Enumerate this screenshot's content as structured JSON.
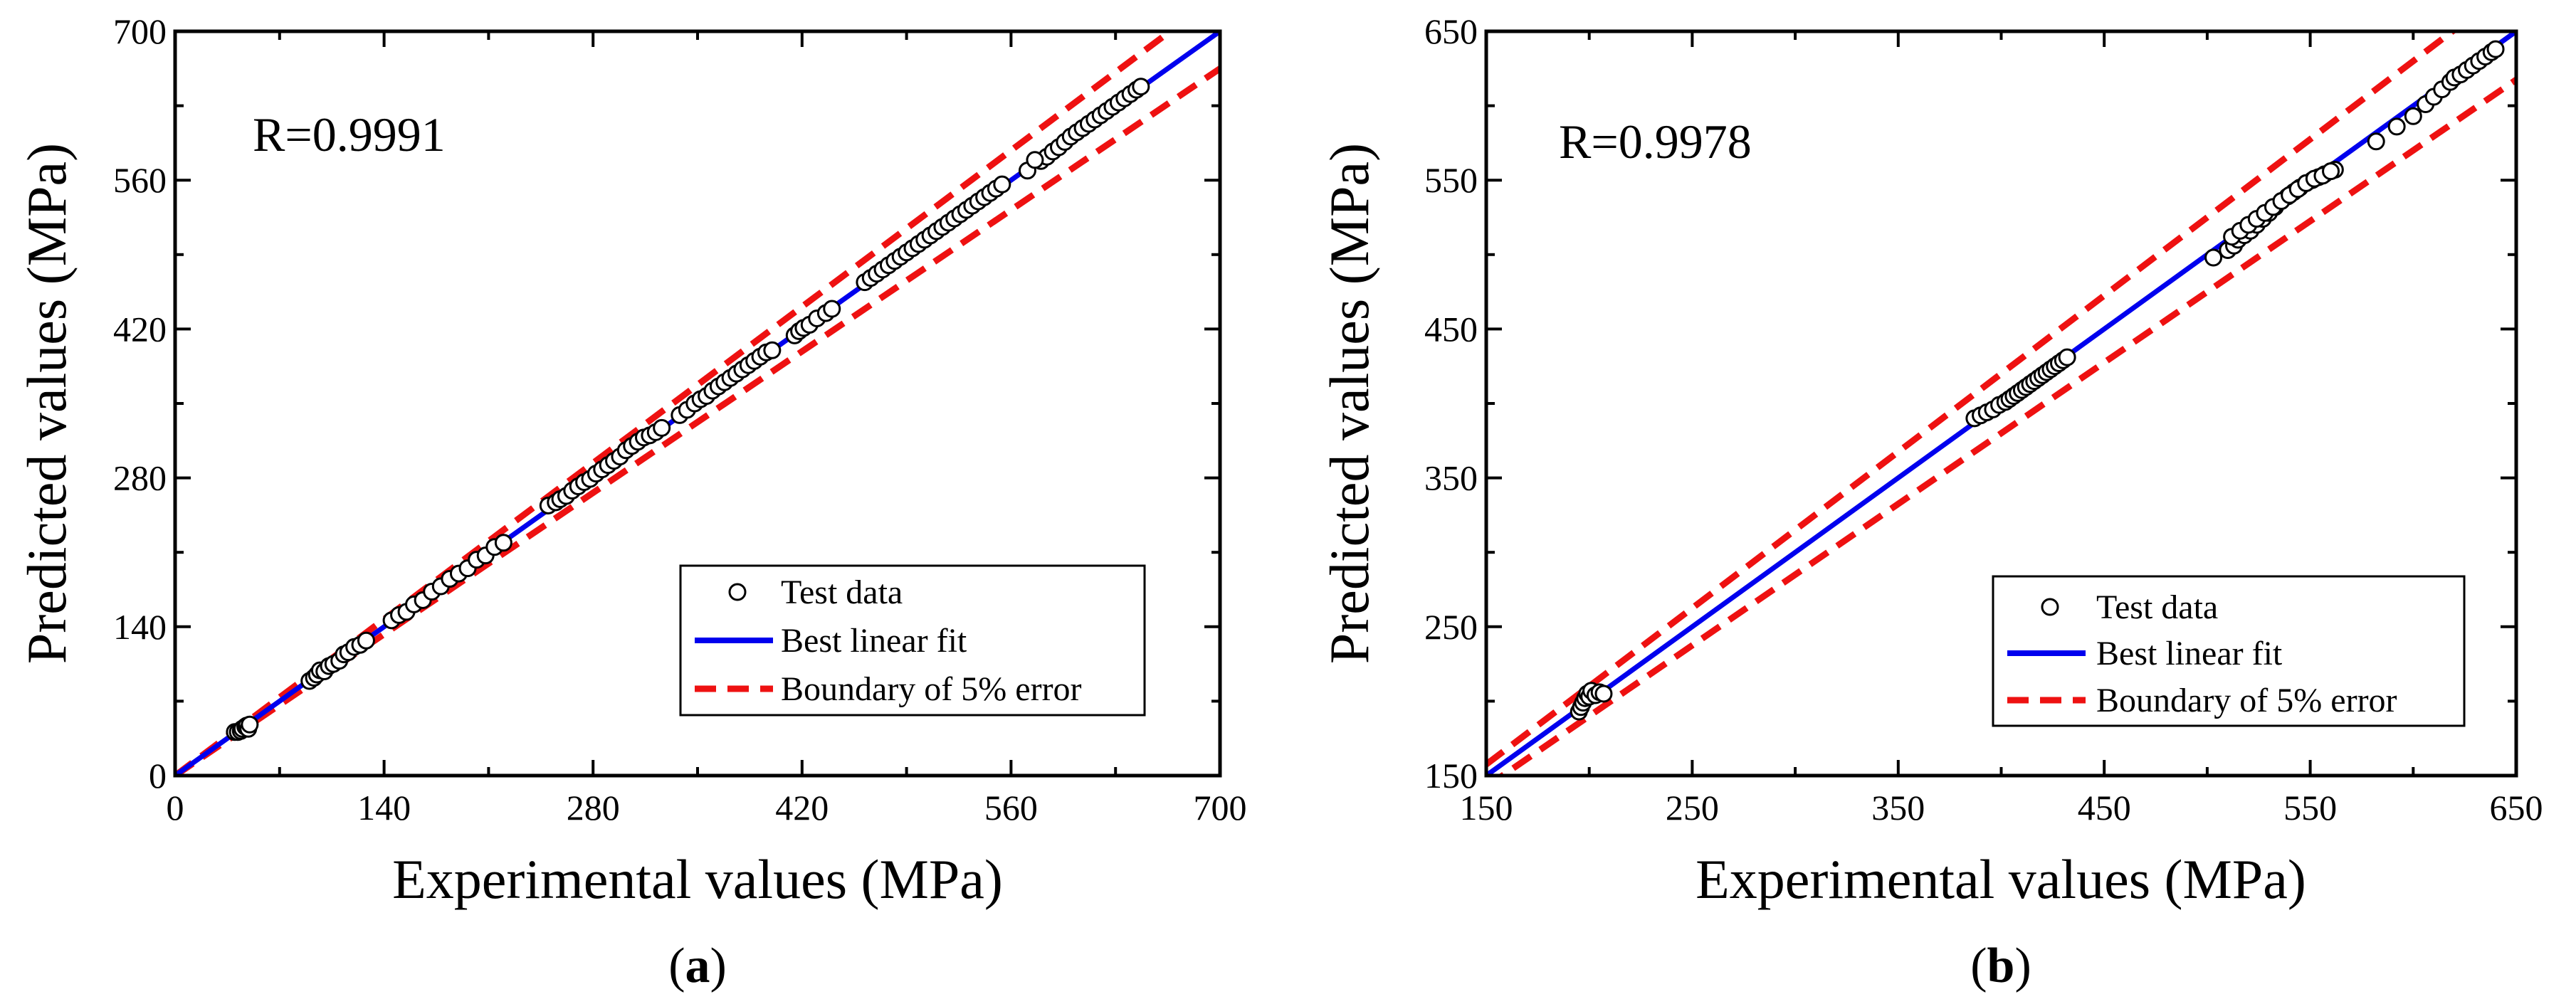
{
  "chart_data": [
    {
      "type": "scatter",
      "panel_label_text": "a",
      "r_text": "R=0.9991",
      "xlabel": "Experimental values (MPa)",
      "ylabel": "Predicted values (MPa)",
      "xlim": [
        0,
        700
      ],
      "ylim": [
        0,
        700
      ],
      "x_ticks": [
        0,
        140,
        280,
        420,
        560,
        700
      ],
      "y_ticks": [
        0,
        140,
        280,
        420,
        560,
        700
      ],
      "minor_step": 70,
      "fit_line": {
        "slope": 1.0,
        "intercept": 0
      },
      "error_fraction": 0.05,
      "legend": {
        "position": "bottom-right",
        "entries": [
          "Test data",
          "Best linear fit",
          "Boundary of 5% error"
        ]
      },
      "points": [
        [
          40,
          41
        ],
        [
          42,
          41
        ],
        [
          44,
          42
        ],
        [
          45,
          44
        ],
        [
          47,
          46
        ],
        [
          48,
          47
        ],
        [
          49,
          44
        ],
        [
          50,
          48
        ],
        [
          90,
          89
        ],
        [
          93,
          92
        ],
        [
          95,
          95
        ],
        [
          97,
          99
        ],
        [
          100,
          98
        ],
        [
          103,
          103
        ],
        [
          106,
          105
        ],
        [
          110,
          108
        ],
        [
          113,
          114
        ],
        [
          116,
          116
        ],
        [
          120,
          121
        ],
        [
          124,
          123
        ],
        [
          128,
          127
        ],
        [
          145,
          146
        ],
        [
          150,
          151
        ],
        [
          155,
          154
        ],
        [
          160,
          161
        ],
        [
          166,
          165
        ],
        [
          172,
          173
        ],
        [
          178,
          178
        ],
        [
          184,
          185
        ],
        [
          190,
          190
        ],
        [
          196,
          195
        ],
        [
          202,
          203
        ],
        [
          208,
          207
        ],
        [
          214,
          215
        ],
        [
          220,
          219
        ],
        [
          250,
          254
        ],
        [
          255,
          257
        ],
        [
          258,
          260
        ],
        [
          262,
          263
        ],
        [
          266,
          268
        ],
        [
          270,
          272
        ],
        [
          274,
          276
        ],
        [
          278,
          279
        ],
        [
          282,
          284
        ],
        [
          286,
          288
        ],
        [
          290,
          292
        ],
        [
          294,
          296
        ],
        [
          298,
          300
        ],
        [
          302,
          306
        ],
        [
          306,
          310
        ],
        [
          310,
          314
        ],
        [
          314,
          318
        ],
        [
          318,
          320
        ],
        [
          322,
          323
        ],
        [
          326,
          327
        ],
        [
          338,
          339
        ],
        [
          343,
          344
        ],
        [
          348,
          350
        ],
        [
          352,
          354
        ],
        [
          356,
          357
        ],
        [
          360,
          362
        ],
        [
          364,
          366
        ],
        [
          368,
          370
        ],
        [
          372,
          374
        ],
        [
          376,
          378
        ],
        [
          380,
          382
        ],
        [
          384,
          386
        ],
        [
          388,
          390
        ],
        [
          392,
          394
        ],
        [
          396,
          398
        ],
        [
          400,
          400
        ],
        [
          415,
          414
        ],
        [
          418,
          418
        ],
        [
          421,
          421
        ],
        [
          425,
          424
        ],
        [
          430,
          430
        ],
        [
          436,
          435
        ],
        [
          440,
          439
        ],
        [
          462,
          464
        ],
        [
          466,
          468
        ],
        [
          470,
          472
        ],
        [
          474,
          476
        ],
        [
          478,
          480
        ],
        [
          482,
          484
        ],
        [
          486,
          488
        ],
        [
          490,
          492
        ],
        [
          494,
          496
        ],
        [
          498,
          500
        ],
        [
          502,
          504
        ],
        [
          506,
          508
        ],
        [
          510,
          512
        ],
        [
          514,
          516
        ],
        [
          518,
          520
        ],
        [
          522,
          524
        ],
        [
          526,
          528
        ],
        [
          530,
          532
        ],
        [
          534,
          536
        ],
        [
          538,
          540
        ],
        [
          542,
          544
        ],
        [
          546,
          548
        ],
        [
          550,
          552
        ],
        [
          554,
          556
        ],
        [
          580,
          578
        ],
        [
          584,
          582
        ],
        [
          588,
          587
        ],
        [
          592,
          591
        ],
        [
          596,
          596
        ],
        [
          600,
          601
        ],
        [
          604,
          605
        ],
        [
          608,
          609
        ],
        [
          612,
          613
        ],
        [
          616,
          617
        ],
        [
          620,
          621
        ],
        [
          624,
          625
        ],
        [
          628,
          629
        ],
        [
          632,
          633
        ],
        [
          636,
          637
        ],
        [
          640,
          641
        ],
        [
          644,
          645
        ],
        [
          647,
          648
        ],
        [
          571,
          569
        ],
        [
          576,
          579
        ]
      ]
    },
    {
      "type": "scatter",
      "panel_label_text": "b",
      "r_text": "R=0.9978",
      "xlabel": "Experimental values (MPa)",
      "ylabel": "Predicted values (MPa)",
      "xlim": [
        150,
        650
      ],
      "ylim": [
        150,
        650
      ],
      "x_ticks": [
        150,
        250,
        350,
        450,
        550,
        650
      ],
      "y_ticks": [
        150,
        250,
        350,
        450,
        550,
        650
      ],
      "minor_step": 50,
      "fit_line": {
        "slope": 1.0,
        "intercept": 0
      },
      "error_fraction": 0.05,
      "legend": {
        "position": "bottom-right",
        "entries": [
          "Test data",
          "Best linear fit",
          "Boundary of 5% error"
        ]
      },
      "points": [
        [
          195,
          193
        ],
        [
          196,
          196
        ],
        [
          197,
          199
        ],
        [
          198,
          202
        ],
        [
          199,
          205
        ],
        [
          200,
          203
        ],
        [
          201,
          207
        ],
        [
          203,
          204
        ],
        [
          205,
          206
        ],
        [
          207,
          205
        ],
        [
          387,
          390
        ],
        [
          390,
          392
        ],
        [
          393,
          394
        ],
        [
          396,
          396
        ],
        [
          399,
          399
        ],
        [
          402,
          401
        ],
        [
          404,
          403
        ],
        [
          406,
          405
        ],
        [
          408,
          407
        ],
        [
          410,
          409
        ],
        [
          412,
          411
        ],
        [
          414,
          413
        ],
        [
          416,
          415
        ],
        [
          418,
          417
        ],
        [
          420,
          419
        ],
        [
          422,
          421
        ],
        [
          424,
          423
        ],
        [
          426,
          425
        ],
        [
          428,
          427
        ],
        [
          430,
          429
        ],
        [
          432,
          431
        ],
        [
          503,
          498
        ],
        [
          510,
          503
        ],
        [
          513,
          506
        ],
        [
          515,
          510
        ],
        [
          518,
          513
        ],
        [
          521,
          516
        ],
        [
          524,
          520
        ],
        [
          527,
          524
        ],
        [
          530,
          528
        ],
        [
          533,
          532
        ],
        [
          536,
          536
        ],
        [
          539,
          539
        ],
        [
          542,
          542
        ],
        [
          545,
          545
        ],
        [
          548,
          548
        ],
        [
          551,
          550
        ],
        [
          554,
          552
        ],
        [
          557,
          554
        ],
        [
          560,
          556
        ],
        [
          562,
          557
        ],
        [
          512,
          512
        ],
        [
          516,
          516
        ],
        [
          520,
          520
        ],
        [
          524,
          524
        ],
        [
          528,
          528
        ],
        [
          532,
          532
        ],
        [
          536,
          536
        ],
        [
          540,
          540
        ],
        [
          544,
          544
        ],
        [
          548,
          548
        ],
        [
          552,
          551
        ],
        [
          556,
          553
        ],
        [
          560,
          556
        ],
        [
          582,
          576
        ],
        [
          592,
          586
        ],
        [
          600,
          593
        ],
        [
          606,
          601
        ],
        [
          610,
          606
        ],
        [
          614,
          611
        ],
        [
          618,
          616
        ],
        [
          620,
          619
        ],
        [
          623,
          621
        ],
        [
          626,
          624
        ],
        [
          629,
          627
        ],
        [
          632,
          630
        ],
        [
          635,
          633
        ],
        [
          638,
          636
        ],
        [
          640,
          638
        ]
      ]
    }
  ]
}
